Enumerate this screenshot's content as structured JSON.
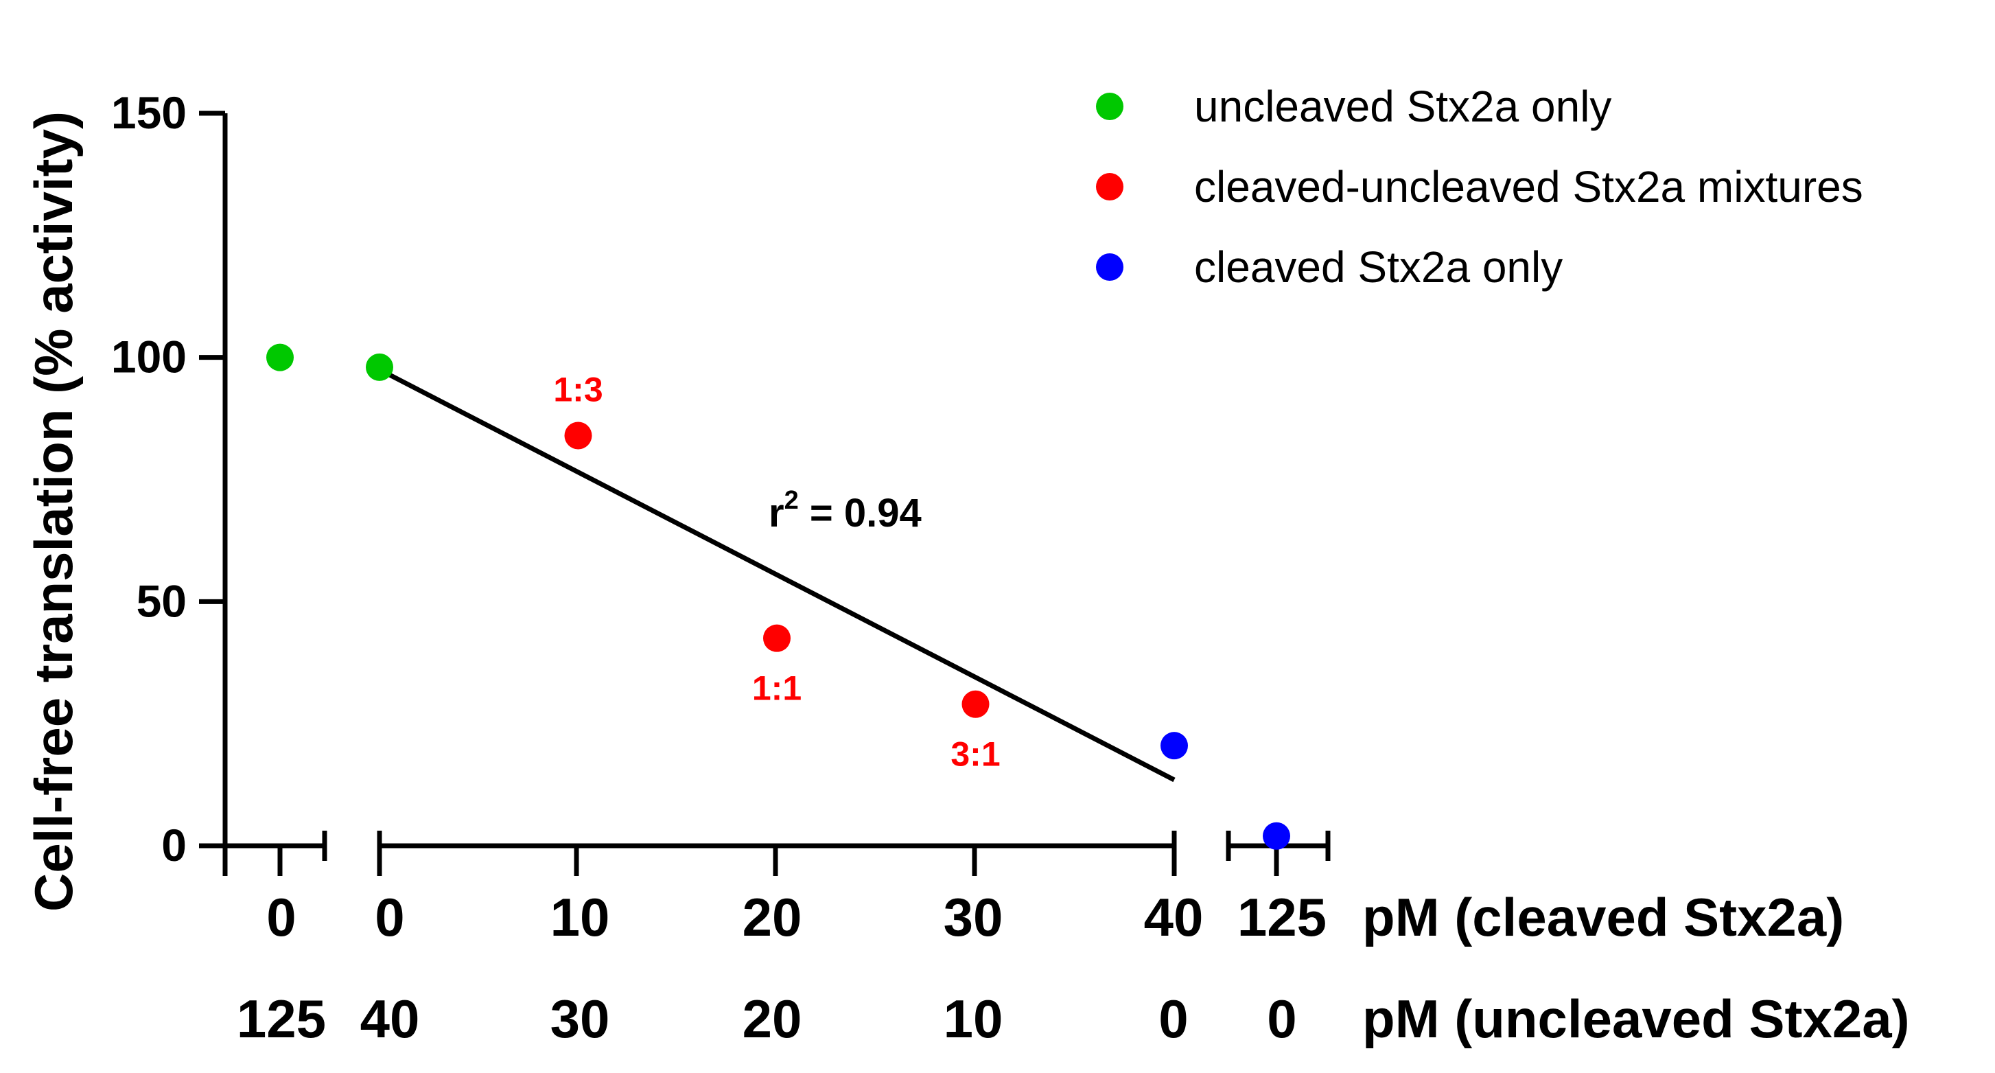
{
  "chart_data": {
    "type": "scatter",
    "ylabel": "Cell-free translation (% activity)",
    "ylim": [
      0,
      150
    ],
    "y_ticks": [
      0,
      50,
      100,
      150
    ],
    "colors": {
      "green": "#00c800",
      "red": "#ff0000",
      "blue": "#0000ff",
      "axis": "#000000"
    },
    "series": [
      {
        "name": "uncleaved Stx2a only",
        "color": "#00c800",
        "points": [
          {
            "segment": "left",
            "x": 0,
            "y": 100
          },
          {
            "segment": "middle",
            "x": 0,
            "y": 98
          }
        ]
      },
      {
        "name": "cleaved-uncleaved Stx2a mixtures",
        "color": "#ff0000",
        "points": [
          {
            "segment": "middle",
            "x": 10,
            "y": 84,
            "label": "1:3"
          },
          {
            "segment": "middle",
            "x": 20,
            "y": 42.5,
            "label": "1:1"
          },
          {
            "segment": "middle",
            "x": 30,
            "y": 29,
            "label": "3:1"
          }
        ]
      },
      {
        "name": "cleaved Stx2a only",
        "color": "#0000ff",
        "points": [
          {
            "segment": "middle",
            "x": 40,
            "y": 20.5
          },
          {
            "segment": "right",
            "x": 125,
            "y": 2
          }
        ]
      }
    ],
    "regression": {
      "x_start": 0,
      "y_start": 97.5,
      "x_end": 40,
      "y_end": 13.5,
      "label": "r",
      "label_exp": "2",
      "label_value": " = 0.94"
    },
    "x_axis": {
      "cleaved_label": "pM (cleaved Stx2a)",
      "uncleaved_label": "pM (uncleaved Stx2a)",
      "columns": [
        {
          "cleaved": "0",
          "uncleaved": "125"
        },
        {
          "cleaved": "0",
          "uncleaved": "40"
        },
        {
          "cleaved": "10",
          "uncleaved": "30"
        },
        {
          "cleaved": "20",
          "uncleaved": "20"
        },
        {
          "cleaved": "30",
          "uncleaved": "10"
        },
        {
          "cleaved": "40",
          "uncleaved": "0"
        },
        {
          "cleaved": "125",
          "uncleaved": "0"
        }
      ]
    }
  }
}
